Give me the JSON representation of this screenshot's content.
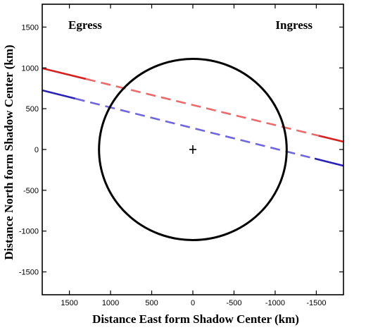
{
  "chart_data": {
    "type": "line",
    "title": "",
    "xlabel": "Distance East form Shadow Center (km)",
    "ylabel": "Distance North form Shadow Center (km)",
    "xlim": [
      1830,
      -1830
    ],
    "ylim": [
      -1780,
      1780
    ],
    "x_reversed": true,
    "xticks": [
      1500,
      1000,
      500,
      0,
      -500,
      -1000,
      -1500
    ],
    "yticks": [
      1500,
      1000,
      500,
      0,
      -500,
      -1000,
      -1500
    ],
    "xtick_labels": [
      "1500",
      "1000",
      "500",
      "0",
      "-500",
      "-1000",
      "-1500"
    ],
    "ytick_labels": [
      "1500",
      "1000",
      "500",
      "0",
      "-500",
      "-1000",
      "-1500"
    ],
    "grid": false,
    "legend": null,
    "annotations": [
      {
        "text": "Egress",
        "position": "top-left"
      },
      {
        "text": "Ingress",
        "position": "top-right"
      }
    ],
    "shadow": {
      "center": [
        0,
        0
      ],
      "radius_x": 1140,
      "radius_y": 1110,
      "center_marker": "+",
      "color": "#000000"
    },
    "series": [
      {
        "color": "#d92020",
        "faded_color": "#ee6a6a",
        "points": [
          [
            1830,
            995
          ],
          [
            -1830,
            95
          ]
        ],
        "dashed_range": [
          1300,
          -1530
        ]
      },
      {
        "color": "#2a22b8",
        "faded_color": "#7166dd",
        "points": [
          [
            1830,
            725
          ],
          [
            -1830,
            -200
          ]
        ],
        "dashed_range": [
          1430,
          -1480
        ]
      }
    ]
  }
}
